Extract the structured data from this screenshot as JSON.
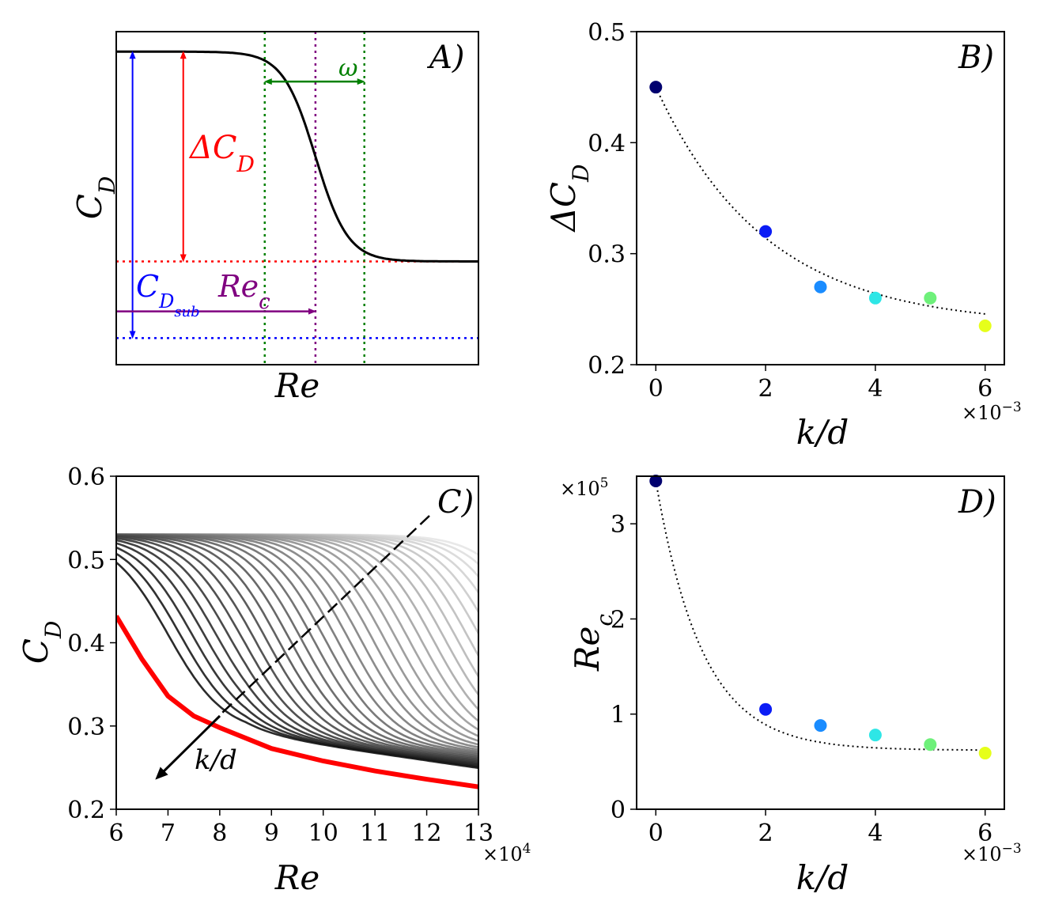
{
  "chart_data": [
    {
      "panel": "A",
      "type": "line",
      "label": "A)",
      "xlabel": "Re",
      "ylabel": "C_D",
      "schematic": true,
      "curve": {
        "kind": "sigmoid",
        "ylim": [
          0,
          1
        ],
        "xlim": [
          0,
          1
        ],
        "high": 0.94,
        "low": 0.31,
        "center": 0.55,
        "width": 0.045
      },
      "levels": {
        "cd_low": 0.31,
        "cd_sub": 0.08,
        "rec": 0.55,
        "omega_left": 0.41,
        "omega_right": 0.685,
        "omega_y": 0.85,
        "rec_arrow_y": 0.16
      },
      "annotations": {
        "delta_cd": "ΔC_D",
        "cd_sub": "C_D_sub",
        "rec": "Re_c",
        "omega": "ω"
      },
      "colors": {
        "curve": "#000000",
        "delta": "#ff0000",
        "sub": "#0000ff",
        "rec": "#800080",
        "omega": "#008000"
      }
    },
    {
      "panel": "B",
      "type": "scatter",
      "label": "B)",
      "xlabel": "k/d",
      "ylabel": "ΔC_D",
      "x": [
        0,
        2,
        3,
        4,
        5,
        6
      ],
      "y": [
        0.45,
        0.32,
        0.27,
        0.26,
        0.26,
        0.235
      ],
      "point_colors": [
        "#00006f",
        "#0b1cf5",
        "#1a8cff",
        "#2ee6e6",
        "#6ef07a",
        "#e6ff1a"
      ],
      "fit": {
        "kind": "exponential",
        "a": 0.215,
        "b": 0.235,
        "tau": 2.0
      },
      "xlim": [
        -0.35,
        6.35
      ],
      "ylim": [
        0.2,
        0.5
      ],
      "xticks": [
        0,
        2,
        4,
        6
      ],
      "yticks": [
        0.2,
        0.3,
        0.4,
        0.5
      ],
      "ytick_labels": [
        "0.2",
        "0.3",
        "0.4",
        "0.5"
      ],
      "x_multiplier": "×10",
      "x_multiplier_exp": "−3"
    },
    {
      "panel": "C",
      "type": "line",
      "label": "C)",
      "xlabel": "Re",
      "ylabel": "C_D",
      "xlim": [
        6,
        13
      ],
      "ylim": [
        0.2,
        0.6
      ],
      "xticks": [
        6,
        7,
        8,
        9,
        10,
        11,
        12,
        13
      ],
      "yticks": [
        0.2,
        0.3,
        0.4,
        0.5,
        0.6
      ],
      "ytick_labels": [
        "0.2",
        "0.3",
        "0.4",
        "0.5",
        "0.6"
      ],
      "x_multiplier": "×10",
      "x_multiplier_exp": "4",
      "family": {
        "count": 32,
        "cd_high": 0.53,
        "rec_first": 7.0,
        "rec_last": 14.2,
        "width": 0.55
      },
      "envelope": {
        "x": [
          6.0,
          6.5,
          7.0,
          7.5,
          8.0,
          9.0,
          10.0,
          11.0,
          12.0,
          13.0
        ],
        "y": [
          0.432,
          0.38,
          0.336,
          0.312,
          0.298,
          0.273,
          0.258,
          0.246,
          0.236,
          0.227
        ],
        "color": "#ff0000"
      },
      "trend_label": "k/d"
    },
    {
      "panel": "D",
      "type": "scatter",
      "label": "D)",
      "xlabel": "k/d",
      "ylabel": "Re_c",
      "x": [
        0,
        2,
        3,
        4,
        5,
        6
      ],
      "y": [
        3.45,
        1.05,
        0.88,
        0.78,
        0.68,
        0.59
      ],
      "point_colors": [
        "#00006f",
        "#0b1cf5",
        "#1a8cff",
        "#2ee6e6",
        "#6ef07a",
        "#e6ff1a"
      ],
      "fit": {
        "kind": "exponential",
        "a": 2.83,
        "b": 0.62,
        "tau": 0.85
      },
      "xlim": [
        -0.35,
        6.35
      ],
      "ylim": [
        0,
        3.5
      ],
      "xticks": [
        0,
        2,
        4,
        6
      ],
      "yticks": [
        0,
        1,
        2,
        3
      ],
      "ytick_labels": [
        "0",
        "1",
        "2",
        "3"
      ],
      "x_multiplier": "×10",
      "x_multiplier_exp": "−3",
      "y_multiplier": "×10",
      "y_multiplier_exp": "5"
    }
  ]
}
